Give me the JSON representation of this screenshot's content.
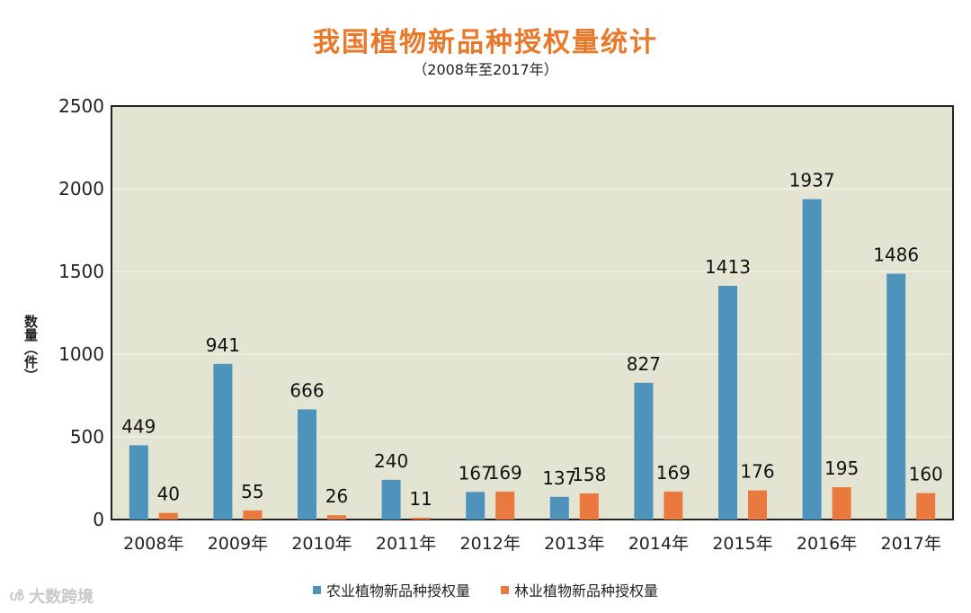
{
  "title": "我国植物新品种授权量统计",
  "subtitle": "（2008年至2017年）",
  "watermark": "大数跨境",
  "colors": {
    "agri": "#4e93bb",
    "forest": "#e9793e",
    "plot_bg": "#e4e4d2",
    "title": "#e8792b"
  },
  "chart_data": {
    "type": "bar",
    "title": "我国植物新品种授权量统计",
    "subtitle": "（2008年至2017年）",
    "ylabel": "数量（件）",
    "xlabel": "",
    "ylim": [
      0,
      2500
    ],
    "yticks": [
      0,
      500,
      1000,
      1500,
      2000,
      2500
    ],
    "categories": [
      "2008年",
      "2009年",
      "2010年",
      "2011年",
      "2012年",
      "2013年",
      "2014年",
      "2015年",
      "2016年",
      "2017年"
    ],
    "series": [
      {
        "name": "农业植物新品种授权量",
        "values": [
          449,
          941,
          666,
          240,
          167,
          137,
          827,
          1413,
          1937,
          1486
        ]
      },
      {
        "name": "林业植物新品种授权量",
        "values": [
          40,
          55,
          26,
          11,
          169,
          158,
          169,
          176,
          195,
          160
        ]
      }
    ],
    "grid": true,
    "legend": "bottom-center"
  }
}
